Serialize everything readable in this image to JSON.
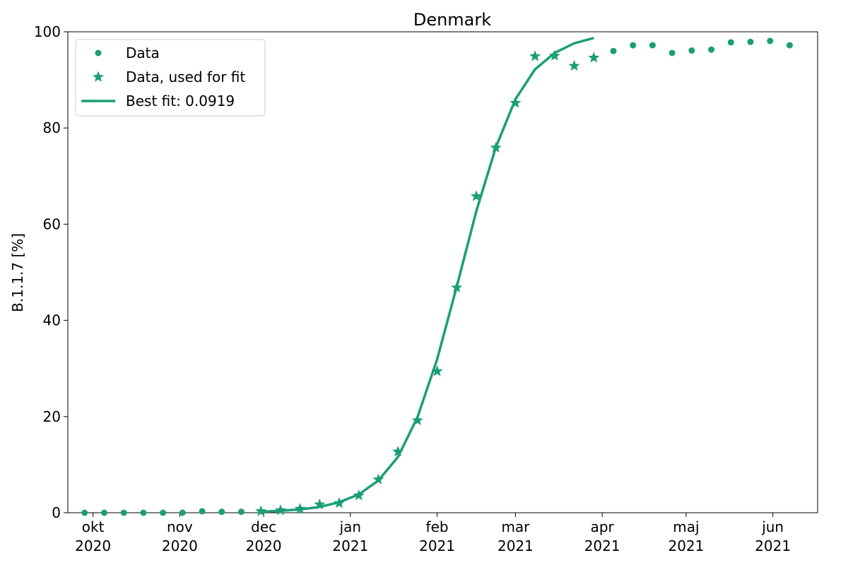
{
  "chart_data": {
    "type": "line",
    "title": "Denmark",
    "xlabel": "",
    "ylabel": "B.1.1.7 [%]",
    "xlim": [
      "2020-09-22",
      "2021-06-17"
    ],
    "ylim": [
      0,
      100
    ],
    "yticks": [
      0,
      20,
      40,
      60,
      80,
      100
    ],
    "xticks": [
      {
        "date": "2020-10-01",
        "line1": "okt",
        "line2": "2020"
      },
      {
        "date": "2020-11-01",
        "line1": "nov",
        "line2": "2020"
      },
      {
        "date": "2020-12-01",
        "line1": "dec",
        "line2": "2020"
      },
      {
        "date": "2021-01-01",
        "line1": "jan",
        "line2": "2021"
      },
      {
        "date": "2021-02-01",
        "line1": "feb",
        "line2": "2021"
      },
      {
        "date": "2021-03-01",
        "line1": "mar",
        "line2": "2021"
      },
      {
        "date": "2021-04-01",
        "line1": "apr",
        "line2": "2021"
      },
      {
        "date": "2021-05-01",
        "line1": "maj",
        "line2": "2021"
      },
      {
        "date": "2021-06-01",
        "line1": "jun",
        "line2": "2021"
      }
    ],
    "legend_position": "top-left",
    "color": "#1b9e77",
    "series": [
      {
        "name": "Data",
        "marker": "circle",
        "points": [
          {
            "x": "2020-09-28",
            "y": 0.0
          },
          {
            "x": "2020-10-05",
            "y": 0.0
          },
          {
            "x": "2020-10-12",
            "y": 0.0
          },
          {
            "x": "2020-10-19",
            "y": 0.0
          },
          {
            "x": "2020-10-26",
            "y": 0.0
          },
          {
            "x": "2020-11-02",
            "y": 0.0
          },
          {
            "x": "2020-11-09",
            "y": 0.3
          },
          {
            "x": "2020-11-16",
            "y": 0.2
          },
          {
            "x": "2020-11-23",
            "y": 0.2
          },
          {
            "x": "2021-04-05",
            "y": 96.0
          },
          {
            "x": "2021-04-12",
            "y": 97.2
          },
          {
            "x": "2021-04-19",
            "y": 97.2
          },
          {
            "x": "2021-04-26",
            "y": 95.6
          },
          {
            "x": "2021-05-03",
            "y": 96.1
          },
          {
            "x": "2021-05-10",
            "y": 96.3
          },
          {
            "x": "2021-05-17",
            "y": 97.8
          },
          {
            "x": "2021-05-24",
            "y": 97.9
          },
          {
            "x": "2021-05-31",
            "y": 98.1
          },
          {
            "x": "2021-06-07",
            "y": 97.2
          }
        ]
      },
      {
        "name": "Data, used for fit",
        "marker": "star",
        "points": [
          {
            "x": "2020-11-30",
            "y": 0.3
          },
          {
            "x": "2020-12-07",
            "y": 0.5
          },
          {
            "x": "2020-12-14",
            "y": 0.8
          },
          {
            "x": "2020-12-21",
            "y": 1.7
          },
          {
            "x": "2020-12-28",
            "y": 2.0
          },
          {
            "x": "2021-01-04",
            "y": 3.6
          },
          {
            "x": "2021-01-11",
            "y": 6.9
          },
          {
            "x": "2021-01-18",
            "y": 12.7
          },
          {
            "x": "2021-01-25",
            "y": 19.2
          },
          {
            "x": "2021-02-01",
            "y": 29.4
          },
          {
            "x": "2021-02-08",
            "y": 46.8
          },
          {
            "x": "2021-02-15",
            "y": 65.8
          },
          {
            "x": "2021-02-22",
            "y": 75.9
          },
          {
            "x": "2021-03-01",
            "y": 85.2
          },
          {
            "x": "2021-03-08",
            "y": 94.9
          },
          {
            "x": "2021-03-15",
            "y": 95.0
          },
          {
            "x": "2021-03-22",
            "y": 92.9
          },
          {
            "x": "2021-03-29",
            "y": 94.6
          }
        ]
      },
      {
        "name": "Best fit: 0.0919",
        "marker": "line",
        "points": [
          {
            "x": "2020-11-30",
            "y": 0.2
          },
          {
            "x": "2020-12-07",
            "y": 0.4
          },
          {
            "x": "2020-12-14",
            "y": 0.7
          },
          {
            "x": "2020-12-21",
            "y": 1.2
          },
          {
            "x": "2020-12-28",
            "y": 2.2
          },
          {
            "x": "2021-01-04",
            "y": 3.8
          },
          {
            "x": "2021-01-11",
            "y": 6.7
          },
          {
            "x": "2021-01-18",
            "y": 11.6
          },
          {
            "x": "2021-01-25",
            "y": 19.9
          },
          {
            "x": "2021-02-01",
            "y": 31.9
          },
          {
            "x": "2021-02-08",
            "y": 47.0
          },
          {
            "x": "2021-02-15",
            "y": 62.7
          },
          {
            "x": "2021-02-22",
            "y": 76.0
          },
          {
            "x": "2021-03-01",
            "y": 86.0
          },
          {
            "x": "2021-03-08",
            "y": 92.2
          },
          {
            "x": "2021-03-15",
            "y": 95.6
          },
          {
            "x": "2021-03-22",
            "y": 97.6
          },
          {
            "x": "2021-03-29",
            "y": 98.7
          }
        ]
      }
    ]
  }
}
